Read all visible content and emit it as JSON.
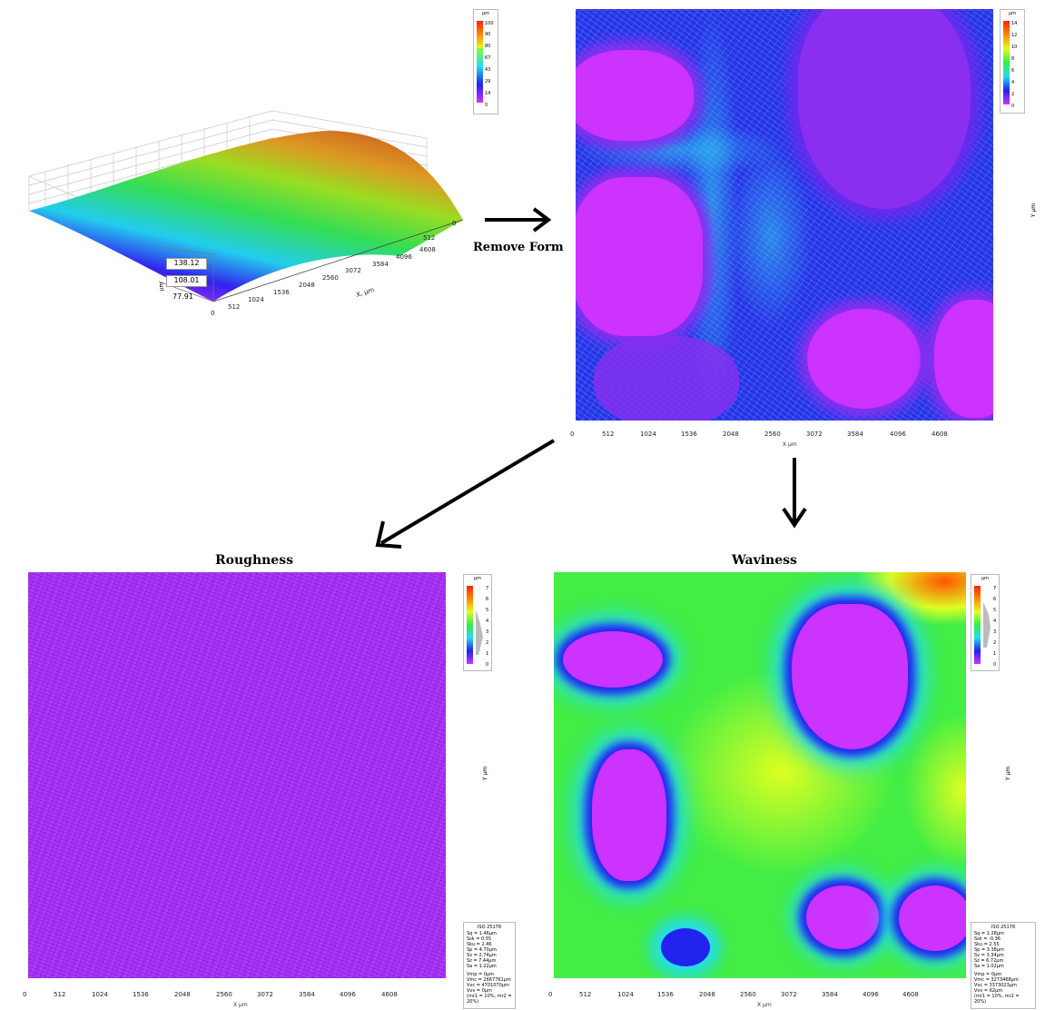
{
  "labels": {
    "remove_form": "Remove Form",
    "roughness": "Roughness",
    "waviness": "Waviness"
  },
  "surface3d": {
    "height_labels": [
      "138.12",
      "108.01",
      "77.91"
    ],
    "z_axis_label": "µm",
    "y_axis_label": "Y, µm",
    "zero": "0",
    "x_ticks": [
      "512",
      "1024",
      "1536",
      "2048",
      "2560",
      "3072",
      "3584",
      "4096",
      "4608"
    ],
    "x_label": "X, µm",
    "y_ticks": [
      "512",
      "0"
    ]
  },
  "axes": {
    "x_ticks": [
      "0",
      "512",
      "1024",
      "1536",
      "2048",
      "2560",
      "3072",
      "3584",
      "4096",
      "4608"
    ],
    "x_label": "X µm",
    "y_label": "Y µm"
  },
  "legends": {
    "unit": "µm",
    "form": [
      "100",
      "90",
      "80",
      "67",
      "43",
      "29",
      "14",
      "0"
    ],
    "removed": [
      "14",
      "12",
      "10",
      "8",
      "6",
      "4",
      "2",
      "0"
    ],
    "roughness": [
      "7",
      "6",
      "5",
      "4",
      "3",
      "2",
      "1",
      "0"
    ],
    "waviness": [
      "7",
      "6",
      "5",
      "4",
      "3",
      "2",
      "1",
      "0"
    ]
  },
  "stats_roughness": {
    "header": "ISO 25178",
    "lines_a": [
      "Sq = 1.46µm",
      "Ssk = 0.55",
      "Sku = 2.46",
      "Sp = 4.70µm",
      "Sv = 2.74µm",
      "Sz = 7.44µm",
      "Sa = 1.22µm"
    ],
    "lines_b": [
      "Vmp = 0µm",
      "Vmc = 2667761µm",
      "Vvc = 4701070µm",
      "Vvv = 0µm",
      "(mr1 = 10%, mr2 = 20%)"
    ]
  },
  "stats_waviness": {
    "header": "ISO 25178",
    "lines_a": [
      "Sq = 1.28µm",
      "Ssk = -0.36",
      "Sku = 2.55",
      "Sp = 3.38µm",
      "Sv = 3.34µm",
      "Sz = 6.72µm",
      "Sa = 1.02µm"
    ],
    "lines_b": [
      "Vmp = 0µm",
      "Vmc = 3273468µm",
      "Vvc = 3373023µm",
      "Vvv = 62µm",
      "(mr1 = 10%, mr2 = 20%)"
    ]
  },
  "colors": {
    "magenta": "#cc33ff",
    "blue": "#2222ee",
    "cyan": "#22ddee",
    "green": "#33ee44",
    "yellow": "#ddff22",
    "orange": "#ff8800",
    "red": "#ff2200"
  }
}
